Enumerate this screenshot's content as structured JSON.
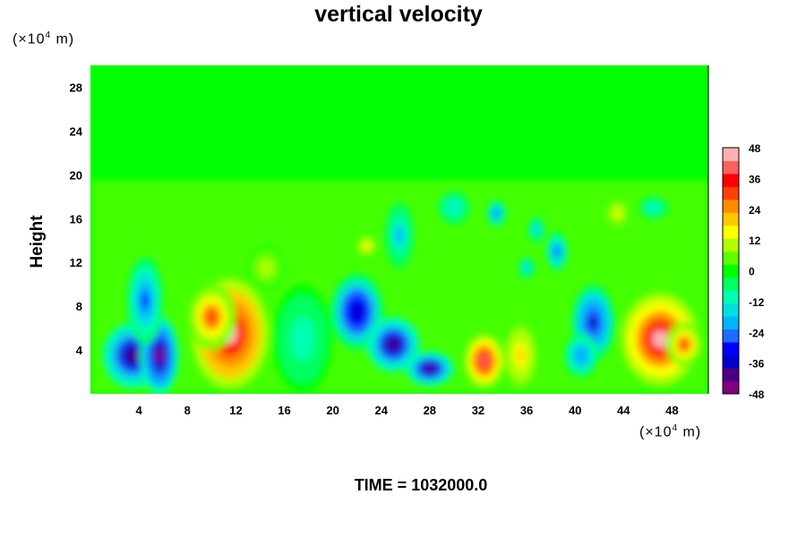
{
  "chart_data": {
    "type": "heatmap",
    "title": "vertical velocity",
    "ylabel": "Height",
    "x_unit_base": "(×10",
    "x_unit_exp": "4",
    "x_unit_tail": " m)",
    "y_unit_base": "(×10",
    "y_unit_exp": "4",
    "y_unit_tail": " m)",
    "footer": "TIME = 1032000.0",
    "xlim": [
      0,
      51
    ],
    "ylim": [
      0,
      30
    ],
    "xticks": [
      4,
      8,
      12,
      16,
      20,
      24,
      28,
      32,
      36,
      40,
      44,
      48
    ],
    "yticks": [
      4,
      8,
      12,
      16,
      20,
      24,
      28
    ],
    "colorbar": {
      "range": [
        -48,
        48
      ],
      "ticks": [
        48,
        36,
        24,
        12,
        0,
        -12,
        -24,
        -36,
        -48
      ],
      "colors": [
        "#800080",
        "#4b0082",
        "#0000cd",
        "#0000ff",
        "#1e6bff",
        "#00b4ff",
        "#00e0e0",
        "#00ffb0",
        "#00ff60",
        "#00ff00",
        "#60ff00",
        "#b0ff00",
        "#ffff00",
        "#ffc800",
        "#ff8c00",
        "#ff4000",
        "#ff0000",
        "#ff6060",
        "#ffb0b0"
      ]
    },
    "features": [
      {
        "x": 11.5,
        "y": 5.5,
        "w": 3.2,
        "h": 5.0,
        "value": 48
      },
      {
        "x": 10.0,
        "y": 7.0,
        "w": 2.0,
        "h": 3.0,
        "value": 30
      },
      {
        "x": 47.0,
        "y": 5.0,
        "w": 3.2,
        "h": 4.2,
        "value": 46
      },
      {
        "x": 49.0,
        "y": 4.5,
        "w": 1.5,
        "h": 2.0,
        "value": 30
      },
      {
        "x": 32.5,
        "y": 3.0,
        "w": 1.6,
        "h": 2.4,
        "value": 40
      },
      {
        "x": 35.5,
        "y": 3.5,
        "w": 1.4,
        "h": 3.0,
        "value": 20
      },
      {
        "x": 22.8,
        "y": 13.5,
        "w": 0.8,
        "h": 0.9,
        "value": 20
      },
      {
        "x": 3.5,
        "y": 3.5,
        "w": 2.5,
        "h": 3.0,
        "value": -44
      },
      {
        "x": 5.7,
        "y": 3.5,
        "w": 1.6,
        "h": 3.6,
        "value": -48
      },
      {
        "x": 4.5,
        "y": 8.5,
        "w": 1.5,
        "h": 4.0,
        "value": -30
      },
      {
        "x": 22.0,
        "y": 7.5,
        "w": 2.2,
        "h": 3.5,
        "value": -40
      },
      {
        "x": 25.0,
        "y": 4.5,
        "w": 2.2,
        "h": 2.5,
        "value": -44
      },
      {
        "x": 28.0,
        "y": 2.3,
        "w": 2.0,
        "h": 1.6,
        "value": -44
      },
      {
        "x": 41.5,
        "y": 6.5,
        "w": 1.8,
        "h": 3.5,
        "value": -36
      },
      {
        "x": 40.5,
        "y": 3.5,
        "w": 1.4,
        "h": 2.0,
        "value": -24
      },
      {
        "x": 38.5,
        "y": 13.0,
        "w": 0.9,
        "h": 1.8,
        "value": -30
      },
      {
        "x": 33.5,
        "y": 16.5,
        "w": 0.8,
        "h": 1.2,
        "value": -30
      },
      {
        "x": 36.8,
        "y": 15.0,
        "w": 0.7,
        "h": 1.2,
        "value": -20
      },
      {
        "x": 36.0,
        "y": 11.5,
        "w": 0.7,
        "h": 1.0,
        "value": -20
      },
      {
        "x": 25.5,
        "y": 14.5,
        "w": 1.2,
        "h": 3.0,
        "value": -20
      },
      {
        "x": 30.0,
        "y": 17.0,
        "w": 1.3,
        "h": 1.5,
        "value": -14
      },
      {
        "x": 46.5,
        "y": 17.0,
        "w": 1.2,
        "h": 1.0,
        "value": -16
      },
      {
        "x": 43.5,
        "y": 16.5,
        "w": 1.0,
        "h": 1.3,
        "value": 14
      },
      {
        "x": 17.5,
        "y": 5.0,
        "w": 2.5,
        "h": 5.0,
        "value": -12
      },
      {
        "x": 14.5,
        "y": 11.5,
        "w": 1.5,
        "h": 2.0,
        "value": 10
      }
    ]
  }
}
